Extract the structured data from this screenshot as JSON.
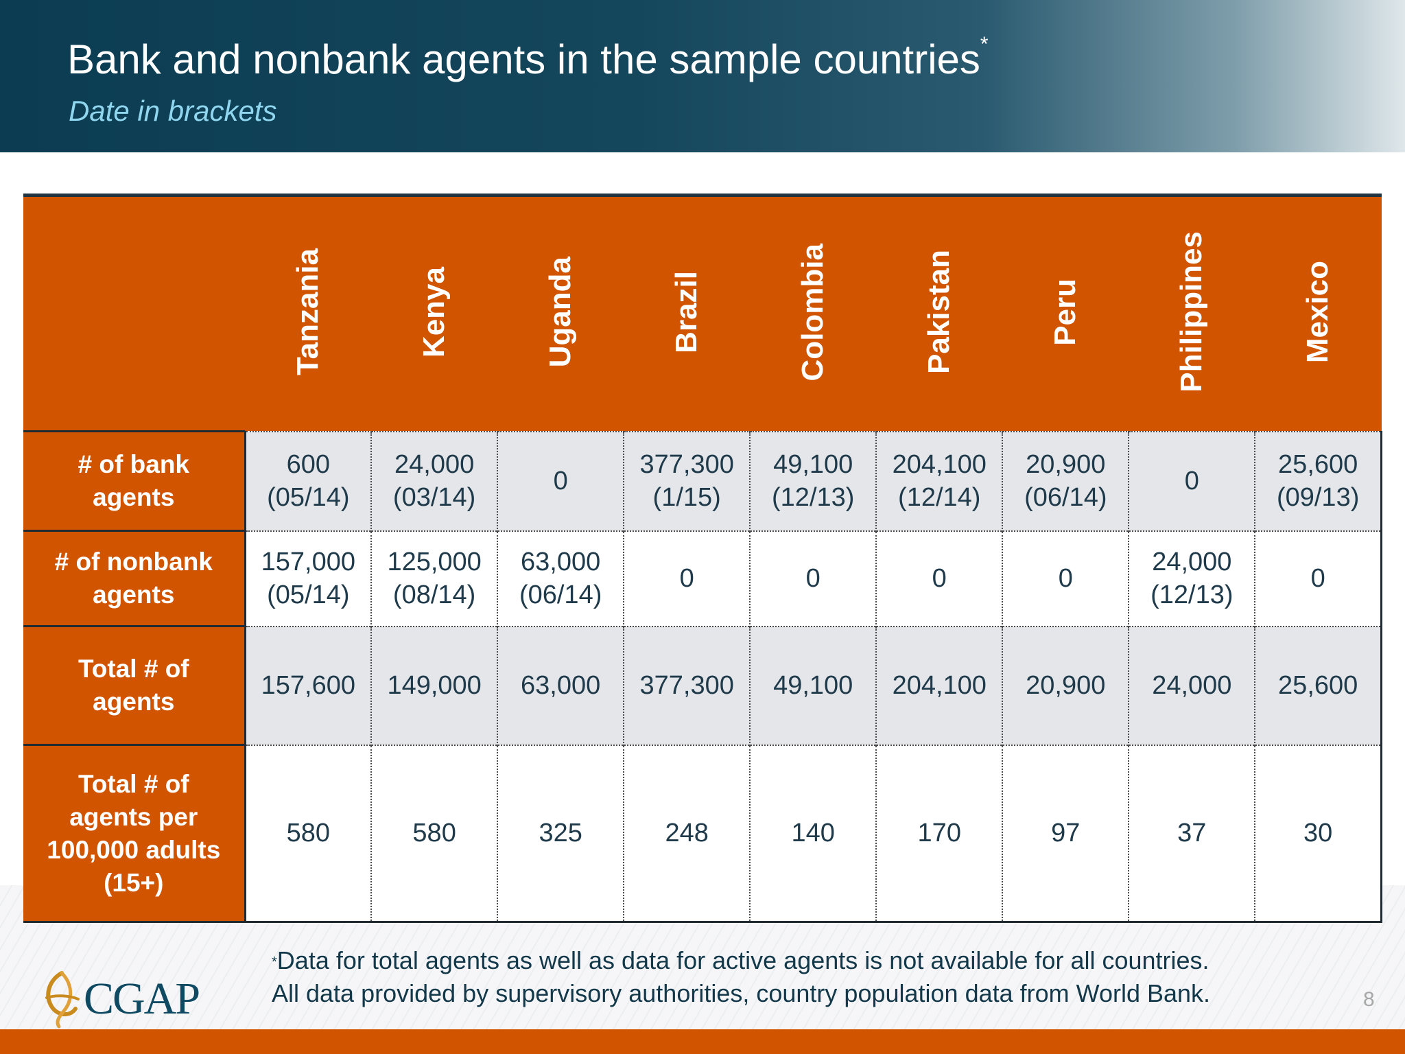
{
  "slide": {
    "title": "Bank and nonbank agents in the sample countries",
    "title_marker": "*",
    "subtitle": "Date in brackets",
    "page_number": "8"
  },
  "table": {
    "countries": [
      "Tanzania",
      "Kenya",
      "Uganda",
      "Brazil",
      "Colombia",
      "Pakistan",
      "Peru",
      "Philippines",
      "Mexico"
    ],
    "rows": [
      {
        "label": "# of bank agents",
        "cells": [
          {
            "value": "600",
            "date": "(05/14)"
          },
          {
            "value": "24,000",
            "date": "(03/14)"
          },
          {
            "value": "0",
            "date": ""
          },
          {
            "value": "377,300",
            "date": "(1/15)"
          },
          {
            "value": "49,100",
            "date": "(12/13)"
          },
          {
            "value": "204,100",
            "date": "(12/14)"
          },
          {
            "value": "20,900",
            "date": "(06/14)"
          },
          {
            "value": "0",
            "date": ""
          },
          {
            "value": "25,600",
            "date": "(09/13)"
          }
        ]
      },
      {
        "label": "# of nonbank agents",
        "cells": [
          {
            "value": "157,000",
            "date": "(05/14)"
          },
          {
            "value": "125,000",
            "date": "(08/14)"
          },
          {
            "value": "63,000",
            "date": "(06/14)"
          },
          {
            "value": "0",
            "date": ""
          },
          {
            "value": "0",
            "date": ""
          },
          {
            "value": "0",
            "date": ""
          },
          {
            "value": "0",
            "date": ""
          },
          {
            "value": "24,000",
            "date": "(12/13)"
          },
          {
            "value": "0",
            "date": ""
          }
        ]
      },
      {
        "label": "Total # of agents",
        "cells": [
          {
            "value": "157,600",
            "date": ""
          },
          {
            "value": "149,000",
            "date": ""
          },
          {
            "value": "63,000",
            "date": ""
          },
          {
            "value": "377,300",
            "date": ""
          },
          {
            "value": "49,100",
            "date": ""
          },
          {
            "value": "204,100",
            "date": ""
          },
          {
            "value": "20,900",
            "date": ""
          },
          {
            "value": "24,000",
            "date": ""
          },
          {
            "value": "25,600",
            "date": ""
          }
        ]
      },
      {
        "label": "Total # of agents per 100,000 adults (15+)",
        "cells": [
          {
            "value": "580",
            "date": ""
          },
          {
            "value": "580",
            "date": ""
          },
          {
            "value": "325",
            "date": ""
          },
          {
            "value": "248",
            "date": ""
          },
          {
            "value": "140",
            "date": ""
          },
          {
            "value": "170",
            "date": ""
          },
          {
            "value": "97",
            "date": ""
          },
          {
            "value": "37",
            "date": ""
          },
          {
            "value": "30",
            "date": ""
          }
        ]
      }
    ]
  },
  "footnote": {
    "marker": "*",
    "line1": "Data for total agents as well as data for active agents is not available for all countries.",
    "line2": "All data provided by supervisory authorities, country population data from World Bank."
  },
  "logo": {
    "text": "CGAP"
  },
  "colors": {
    "header_dark": "#0b3c52",
    "accent_orange": "#d15400",
    "subtitle_blue": "#8fd6ee",
    "cell_grey": "#e4e6e9",
    "text_dark": "#1f3a4a"
  }
}
